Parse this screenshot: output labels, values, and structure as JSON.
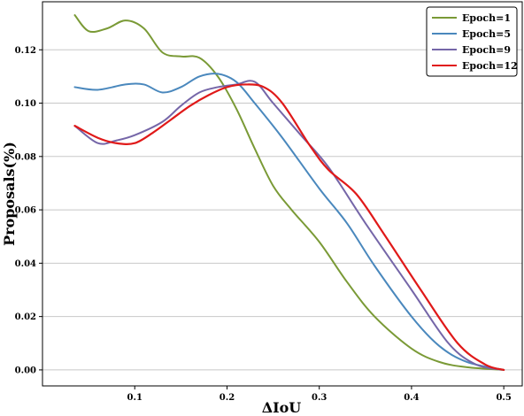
{
  "chart_data": {
    "type": "line",
    "xlabel": "ΔIoU",
    "ylabel": "Proposals(%)",
    "xlim": [
      0.0,
      0.52
    ],
    "ylim": [
      -0.006,
      0.138
    ],
    "xticks": [
      0.1,
      0.2,
      0.3,
      0.4,
      0.5
    ],
    "xtick_labels": [
      "0.1",
      "0.2",
      "0.3",
      "0.4",
      "0.5"
    ],
    "yticks": [
      0.0,
      0.02,
      0.04,
      0.06,
      0.08,
      0.1,
      0.12
    ],
    "ytick_labels": [
      "0.00",
      "0.02",
      "0.04",
      "0.06",
      "0.08",
      "0.10",
      "0.12"
    ],
    "grid": "horizontal",
    "legend": "top-right",
    "series": [
      {
        "name": "Epoch=1",
        "color": "#7a9a36",
        "x": [
          0.035,
          0.05,
          0.07,
          0.09,
          0.11,
          0.13,
          0.15,
          0.17,
          0.19,
          0.21,
          0.23,
          0.25,
          0.27,
          0.3,
          0.33,
          0.36,
          0.4,
          0.43,
          0.46,
          0.5
        ],
        "y": [
          0.133,
          0.127,
          0.128,
          0.131,
          0.128,
          0.119,
          0.1175,
          0.117,
          0.11,
          0.098,
          0.083,
          0.069,
          0.06,
          0.048,
          0.033,
          0.02,
          0.008,
          0.003,
          0.001,
          0.0
        ]
      },
      {
        "name": "Epoch=5",
        "color": "#4a88bd",
        "x": [
          0.035,
          0.06,
          0.09,
          0.11,
          0.13,
          0.15,
          0.17,
          0.19,
          0.21,
          0.23,
          0.26,
          0.3,
          0.33,
          0.36,
          0.4,
          0.43,
          0.46,
          0.5
        ],
        "y": [
          0.106,
          0.105,
          0.107,
          0.107,
          0.104,
          0.106,
          0.11,
          0.111,
          0.108,
          0.1,
          0.087,
          0.068,
          0.055,
          0.039,
          0.02,
          0.009,
          0.003,
          0.0
        ]
      },
      {
        "name": "Epoch=9",
        "color": "#7566a8",
        "x": [
          0.035,
          0.06,
          0.08,
          0.1,
          0.13,
          0.15,
          0.17,
          0.19,
          0.21,
          0.23,
          0.25,
          0.28,
          0.31,
          0.35,
          0.4,
          0.44,
          0.47,
          0.5
        ],
        "y": [
          0.0915,
          0.085,
          0.086,
          0.088,
          0.093,
          0.099,
          0.104,
          0.106,
          0.107,
          0.108,
          0.1,
          0.088,
          0.076,
          0.055,
          0.03,
          0.01,
          0.002,
          0.0
        ]
      },
      {
        "name": "Epoch=12",
        "color": "#e01919",
        "x": [
          0.035,
          0.06,
          0.08,
          0.1,
          0.12,
          0.14,
          0.16,
          0.18,
          0.2,
          0.22,
          0.24,
          0.26,
          0.29,
          0.31,
          0.34,
          0.37,
          0.41,
          0.45,
          0.48,
          0.5
        ],
        "y": [
          0.0915,
          0.087,
          0.085,
          0.085,
          0.089,
          0.094,
          0.099,
          0.103,
          0.106,
          0.107,
          0.106,
          0.1,
          0.084,
          0.075,
          0.066,
          0.051,
          0.03,
          0.01,
          0.002,
          0.0
        ]
      }
    ]
  }
}
